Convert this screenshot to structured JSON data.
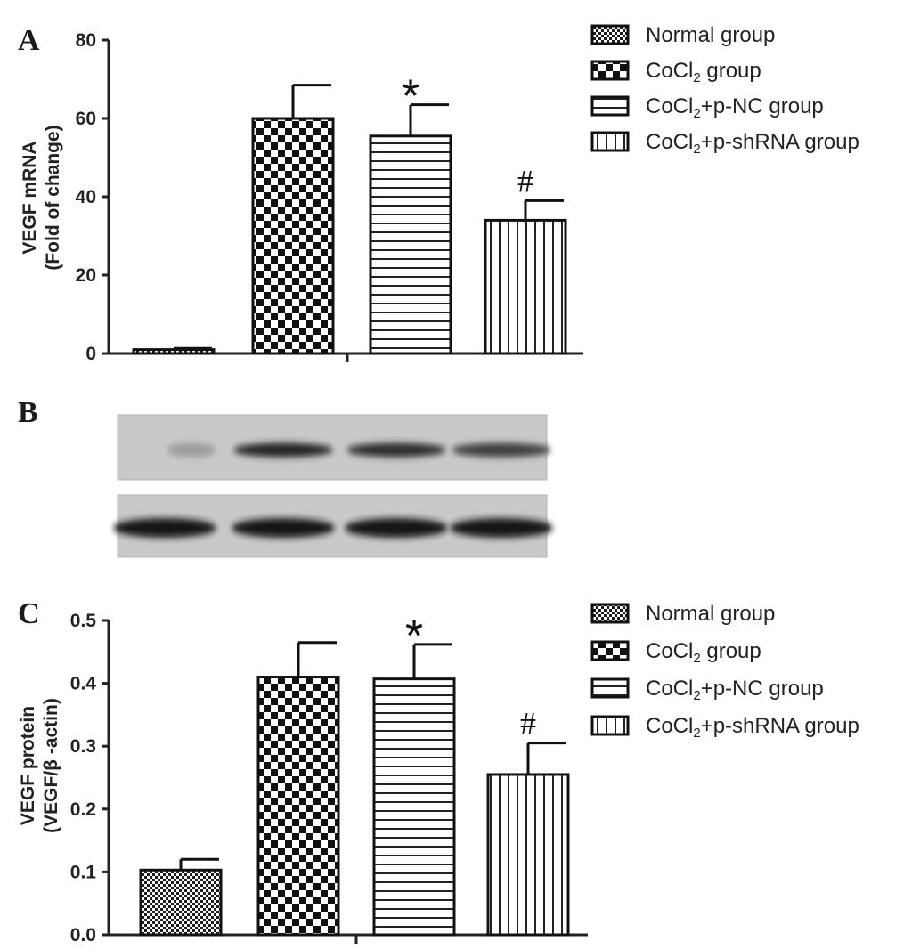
{
  "chart_data": [
    {
      "panel": "A",
      "type": "bar",
      "categories": [
        "Normal group",
        "CoCl2 group",
        "CoCl2+p-NC group",
        "CoCl2+p-shRNA group"
      ],
      "values": [
        1,
        60,
        55.5,
        34
      ],
      "errors": [
        0.3,
        8.5,
        8,
        5
      ],
      "ylabel": [
        "VEGF mRNA",
        "(Fold of change)"
      ],
      "ylim": [
        0,
        80
      ],
      "yticks": [
        "0",
        "20",
        "40",
        "60",
        "80"
      ],
      "annotations": [
        "",
        "",
        "*",
        "#"
      ]
    },
    {
      "panel": "B",
      "type": "blot",
      "rows": [
        {
          "intensities": [
            0.25,
            0.95,
            0.9,
            0.8
          ]
        },
        {
          "intensities": [
            1,
            1,
            1,
            1
          ]
        }
      ]
    },
    {
      "panel": "C",
      "type": "bar",
      "categories": [
        "Normal group",
        "CoCl2 group",
        "CoCl2+p-NC group",
        "CoCl2+p-shRNA group"
      ],
      "values": [
        0.103,
        0.41,
        0.407,
        0.255
      ],
      "errors": [
        0.017,
        0.055,
        0.055,
        0.05
      ],
      "ylabel": [
        "VEGF protein",
        "(VEGF/β -actin)"
      ],
      "ylim": [
        0,
        0.5
      ],
      "yticks": [
        "0.0",
        "0.1",
        "0.2",
        "0.3",
        "0.4",
        "0.5"
      ],
      "annotations": [
        "",
        "",
        "*",
        "#"
      ]
    }
  ],
  "legend": {
    "A": [
      {
        "text": "Normal group",
        "pattern": "fine"
      },
      {
        "main": "CoCl",
        "sub": "2",
        "rest": " group",
        "pattern": "checker"
      },
      {
        "main": "CoCl",
        "sub": "2",
        "rest": "+p-NC group",
        "pattern": "horizontal"
      },
      {
        "main": "CoCl",
        "sub": "2",
        "rest": "+p-shRNA group",
        "pattern": "vertical"
      }
    ],
    "C": [
      {
        "text": "Normal group",
        "pattern": "fine"
      },
      {
        "main": "CoCl",
        "sub": "2",
        "rest": " group",
        "pattern": "checker"
      },
      {
        "main": "CoCl",
        "sub": "2",
        "rest": "+p-NC group",
        "pattern": "horizontal"
      },
      {
        "main": "CoCl",
        "sub": "2",
        "rest": "+p-shRNA group",
        "pattern": "vertical"
      }
    ]
  }
}
